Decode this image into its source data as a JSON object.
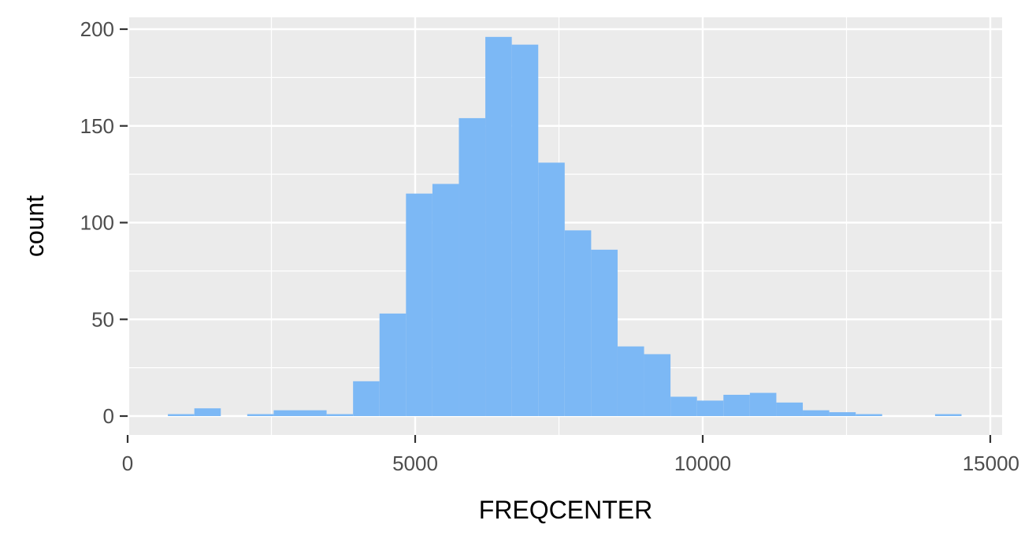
{
  "chart_data": {
    "type": "bar",
    "subtype": "histogram",
    "title": "",
    "xlabel": "FREQCENTER",
    "ylabel": "count",
    "xlim": [
      0,
      15000
    ],
    "ylim": [
      0,
      200
    ],
    "x_ticks": [
      0,
      5000,
      10000,
      15000
    ],
    "y_ticks": [
      0,
      50,
      100,
      150,
      200
    ],
    "x_tick_labels": [
      "0",
      "5000",
      "10000",
      "15000"
    ],
    "y_tick_labels": [
      "0",
      "50",
      "100",
      "150",
      "200"
    ],
    "bin_edges": [
      700,
      1160,
      1620,
      2080,
      2540,
      3000,
      3460,
      3920,
      4380,
      4840,
      5300,
      5760,
      6220,
      6680,
      7140,
      7600,
      8060,
      8520,
      8980,
      9440,
      9900,
      10360,
      10820,
      11280,
      11740,
      12200,
      12660,
      13120,
      13580,
      14040,
      14500
    ],
    "values": [
      1,
      4,
      0,
      1,
      3,
      3,
      1,
      18,
      53,
      115,
      120,
      154,
      196,
      192,
      131,
      96,
      86,
      36,
      32,
      10,
      8,
      11,
      12,
      7,
      3,
      2,
      1,
      0,
      0,
      1
    ],
    "bar_color": "#7cb8f5",
    "panel_background": "#ebebeb",
    "grid": true,
    "grid_color": "#ffffff"
  }
}
